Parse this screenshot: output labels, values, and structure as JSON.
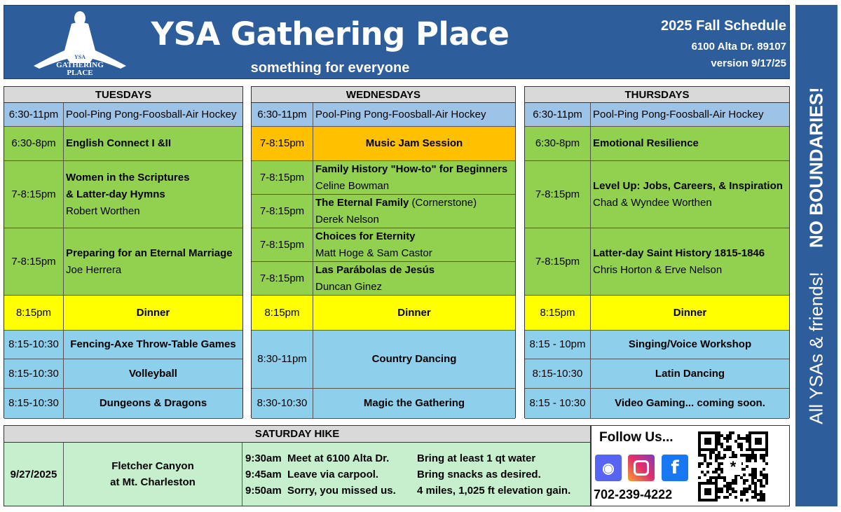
{
  "header": {
    "title": "YSA Gathering Place",
    "subtitle": "something for everyone",
    "schedule": "2025 Fall Schedule",
    "address": "6100 Alta Dr. 89107",
    "version": "version 9/17/25",
    "logo_text": [
      "YSA",
      "GATHERING",
      "PLACE"
    ]
  },
  "banner": {
    "line1": "All  YSAs  &  friends!",
    "line2": "NO BOUNDARIES!"
  },
  "colors": {
    "header_blue": "#2E5D9B",
    "pool": "#9DC3E6",
    "class": "#92D050",
    "music": "#FFC000",
    "dinner": "#FFFF00",
    "evening": "#8ECFEC",
    "hike": "#C6EFCE"
  },
  "days": [
    {
      "name": "TUESDAYS",
      "rows": [
        {
          "time": "6:30-11pm",
          "title": "Pool-Ping Pong-Foosball-Air Hockey",
          "sub": "",
          "kind": "pool",
          "bold": false
        },
        {
          "time": "6:30-8pm",
          "title": "English Connect I &II",
          "sub": "",
          "kind": "class",
          "bold": true
        },
        {
          "time": "7-8:15pm",
          "title": "Women in the Scriptures",
          "title2": "& Latter-day Hymns",
          "sub": "Robert Worthen",
          "kind": "class",
          "bold": true
        },
        {
          "time": "7-8:15pm",
          "title": "Preparing for an Eternal Marriage",
          "sub": "Joe Herrera",
          "kind": "class",
          "bold": true
        },
        {
          "time": "8:15pm",
          "title": "Dinner",
          "sub": "",
          "kind": "dinner",
          "bold": true,
          "center": true
        },
        {
          "time": "8:15-10:30",
          "title": "Fencing-Axe Throw-Table Games",
          "sub": "",
          "kind": "evening",
          "bold": true,
          "center": true
        },
        {
          "time": "8:15-10:30",
          "title": "Volleyball",
          "sub": "",
          "kind": "evening",
          "bold": true,
          "center": true
        },
        {
          "time": "8:15-10:30",
          "title": "Dungeons & Dragons",
          "sub": "",
          "kind": "evening",
          "bold": true,
          "center": true
        }
      ]
    },
    {
      "name": "WEDNESDAYS",
      "rows": [
        {
          "time": "6:30-11pm",
          "title": "Pool-Ping Pong-Foosball-Air Hockey",
          "sub": "",
          "kind": "pool",
          "bold": false
        },
        {
          "time": "7-8:15pm",
          "title": "Music Jam Session",
          "sub": "",
          "kind": "music",
          "bold": true,
          "center": true
        },
        {
          "time": "7-8:15pm",
          "title": "Family History \"How-to\" for Beginners",
          "sub": "Celine Bowman",
          "kind": "class",
          "bold": true
        },
        {
          "time": "7-8:15pm",
          "title": "The Eternal Family",
          "title_extra": " (Cornerstone)",
          "sub": "Derek Nelson",
          "kind": "class",
          "bold": true
        },
        {
          "time": "7-8:15pm",
          "title": "Choices for Eternity",
          "sub": "Matt Hoge & Sam Castor",
          "kind": "class",
          "bold": true
        },
        {
          "time": "7-8:15pm",
          "title": "Las Parábolas de Jesús",
          "sub": "Duncan Ginez",
          "kind": "class",
          "bold": true
        },
        {
          "time": "8:15pm",
          "title": "Dinner",
          "sub": "",
          "kind": "dinner",
          "bold": true,
          "center": true
        },
        {
          "time": "8:30-11pm",
          "title": "Country Dancing",
          "sub": "",
          "kind": "evening",
          "bold": true,
          "center": true
        },
        {
          "time": "8:30-10:30",
          "title": "Magic the Gathering",
          "sub": "",
          "kind": "evening",
          "bold": true,
          "center": true
        }
      ]
    },
    {
      "name": "THURSDAYS",
      "rows": [
        {
          "time": "6:30-11pm",
          "title": "Pool-Ping Pong-Foosball-Air Hockey",
          "sub": "",
          "kind": "pool",
          "bold": false
        },
        {
          "time": "6:30-8pm",
          "title": "Emotional Resilience",
          "sub": "",
          "kind": "class",
          "bold": true
        },
        {
          "time": "7-8:15pm",
          "title": "Level Up: Jobs, Careers, & Inspiration",
          "sub": "Chad & Wyndee  Worthen",
          "kind": "class",
          "bold": true
        },
        {
          "time": "7-8:15pm",
          "title": "Latter-day Saint History 1815-1846",
          "sub": "Chris Horton & Erve Nelson",
          "kind": "class",
          "bold": true
        },
        {
          "time": "8:15pm",
          "title": "Dinner",
          "sub": "",
          "kind": "dinner",
          "bold": true,
          "center": true
        },
        {
          "time": "8:15 - 10pm",
          "title": "Singing/Voice  Workshop",
          "sub": "",
          "kind": "evening",
          "bold": true,
          "center": true
        },
        {
          "time": "8:15-10:30",
          "title": "Latin Dancing",
          "sub": "",
          "kind": "evening",
          "bold": true,
          "center": true
        },
        {
          "time": "8:15 - 10:30",
          "title": "Video Gaming...  coming soon.",
          "sub": "",
          "kind": "evening",
          "bold": true,
          "center": true
        }
      ]
    }
  ],
  "saturday": {
    "title": "SATURDAY  HIKE",
    "date": "9/27/2025",
    "place1": "Fletcher Canyon",
    "place2": "at Mt. Charleston",
    "schedule": [
      {
        "time": "9:30am",
        "what": "Meet at 6100 Alta Dr.",
        "note": "Bring at least 1 qt water"
      },
      {
        "time": "9:45am",
        "what": "Leave via carpool.",
        "note": "Bring snacks as desired."
      },
      {
        "time": "9:50am",
        "what": "Sorry, you missed us.",
        "note": "4 miles, 1,025 ft elevation gain."
      }
    ]
  },
  "follow": {
    "title": "Follow Us...",
    "phone": "702-239-4222",
    "icons": [
      "discord-icon",
      "instagram-icon",
      "facebook-icon",
      "qr-code"
    ]
  }
}
